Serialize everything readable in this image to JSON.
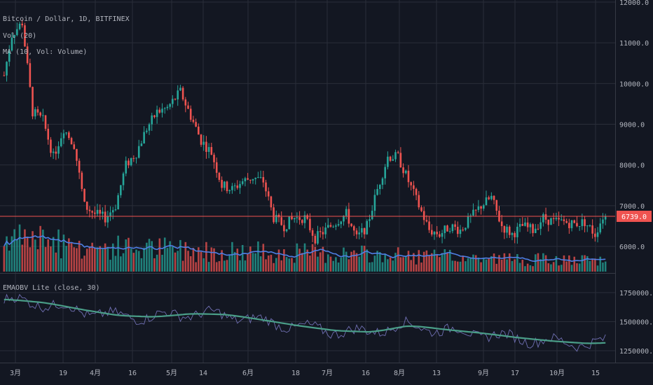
{
  "legend": {
    "symbol": "Bitcoin / Dollar, 1D, BITFINEX",
    "volume": "Vol (20)",
    "volume_ma": "MA (10, Vol: Volume)",
    "indicator": "EMAOBV Lite (close, 30)"
  },
  "price_axis": [
    "12000.0",
    "11000.0",
    "10000.0",
    "9000.0",
    "8000.0",
    "7000.0",
    "6000.0"
  ],
  "indicator_axis": [
    "1750000.0000",
    "1500000.0000",
    "1250000.0000"
  ],
  "date_axis": [
    "3月",
    "19",
    "4月",
    "16",
    "5月",
    "14",
    "6月",
    "18",
    "7月",
    "16",
    "8月",
    "13",
    "9月",
    "17",
    "10月",
    "15"
  ],
  "last_price": "6739.0",
  "colors": {
    "background": "#131722",
    "grid": "#2a2e39",
    "up": "#26a69a",
    "down": "#ef5350",
    "volume_ma": "#4f7fe5",
    "obv": "#6f6fb2",
    "obv_ema": "#4a9e88",
    "price_line": "#ef5350"
  },
  "chart_data": [
    {
      "type": "candlestick",
      "title": "Bitcoin / Dollar, 1D, BITFINEX",
      "ylim": [
        5400,
        12000
      ],
      "x_range": [
        "2018-02-26",
        "2018-10-17"
      ],
      "x": [
        "2018-02-26",
        "2018-03-01",
        "2018-03-05",
        "2018-03-09",
        "2018-03-13",
        "2018-03-17",
        "2018-03-21",
        "2018-03-25",
        "2018-03-29",
        "2018-04-02",
        "2018-04-06",
        "2018-04-10",
        "2018-04-14",
        "2018-04-18",
        "2018-04-22",
        "2018-04-26",
        "2018-04-30",
        "2018-05-05",
        "2018-05-09",
        "2018-05-13",
        "2018-05-17",
        "2018-05-21",
        "2018-05-25",
        "2018-05-29",
        "2018-06-02",
        "2018-06-06",
        "2018-06-10",
        "2018-06-14",
        "2018-06-18",
        "2018-06-22",
        "2018-06-26",
        "2018-06-30",
        "2018-07-04",
        "2018-07-08",
        "2018-07-12",
        "2018-07-16",
        "2018-07-20",
        "2018-07-24",
        "2018-07-28",
        "2018-08-01",
        "2018-08-05",
        "2018-08-09",
        "2018-08-13",
        "2018-08-17",
        "2018-08-21",
        "2018-08-25",
        "2018-08-29",
        "2018-09-02",
        "2018-09-06",
        "2018-09-10",
        "2018-09-14",
        "2018-09-18",
        "2018-09-22",
        "2018-09-26",
        "2018-09-30",
        "2018-10-04",
        "2018-10-08",
        "2018-10-12",
        "2018-10-15"
      ],
      "close": [
        10200,
        11200,
        11500,
        9300,
        9100,
        8200,
        8900,
        8500,
        7000,
        6800,
        6700,
        7000,
        8000,
        8300,
        8900,
        9300,
        9400,
        9800,
        9200,
        8600,
        8300,
        7500,
        7400,
        7600,
        7700,
        7600,
        6700,
        6500,
        6700,
        6700,
        6200,
        6400,
        6600,
        6800,
        6200,
        6500,
        7400,
        8200,
        8200,
        7600,
        7000,
        6400,
        6300,
        6500,
        6400,
        6700,
        7000,
        7200,
        6500,
        6300,
        6500,
        6400,
        6700,
        6600,
        6600,
        6550,
        6600,
        6300,
        6739
      ],
      "last": 6739
    },
    {
      "type": "bar",
      "title": "Vol (20)",
      "series": [
        {
          "name": "MA (10, Vol: Volume)"
        }
      ]
    },
    {
      "type": "line",
      "title": "EMAOBV Lite (close, 30)",
      "ylim": [
        1180000,
        1850000
      ],
      "x": [
        "2018-02-26",
        "2018-03-12",
        "2018-03-26",
        "2018-04-09",
        "2018-04-23",
        "2018-05-07",
        "2018-05-21",
        "2018-06-04",
        "2018-06-18",
        "2018-07-02",
        "2018-07-16",
        "2018-07-30",
        "2018-08-13",
        "2018-08-27",
        "2018-09-10",
        "2018-09-24",
        "2018-10-08",
        "2018-10-15"
      ],
      "series": [
        {
          "values": [
            1690000,
            1660000,
            1600000,
            1550000,
            1540000,
            1570000,
            1560000,
            1510000,
            1460000,
            1420000,
            1410000,
            1470000,
            1430000,
            1400000,
            1360000,
            1330000,
            1310000,
            1320000
          ]
        }
      ]
    }
  ]
}
